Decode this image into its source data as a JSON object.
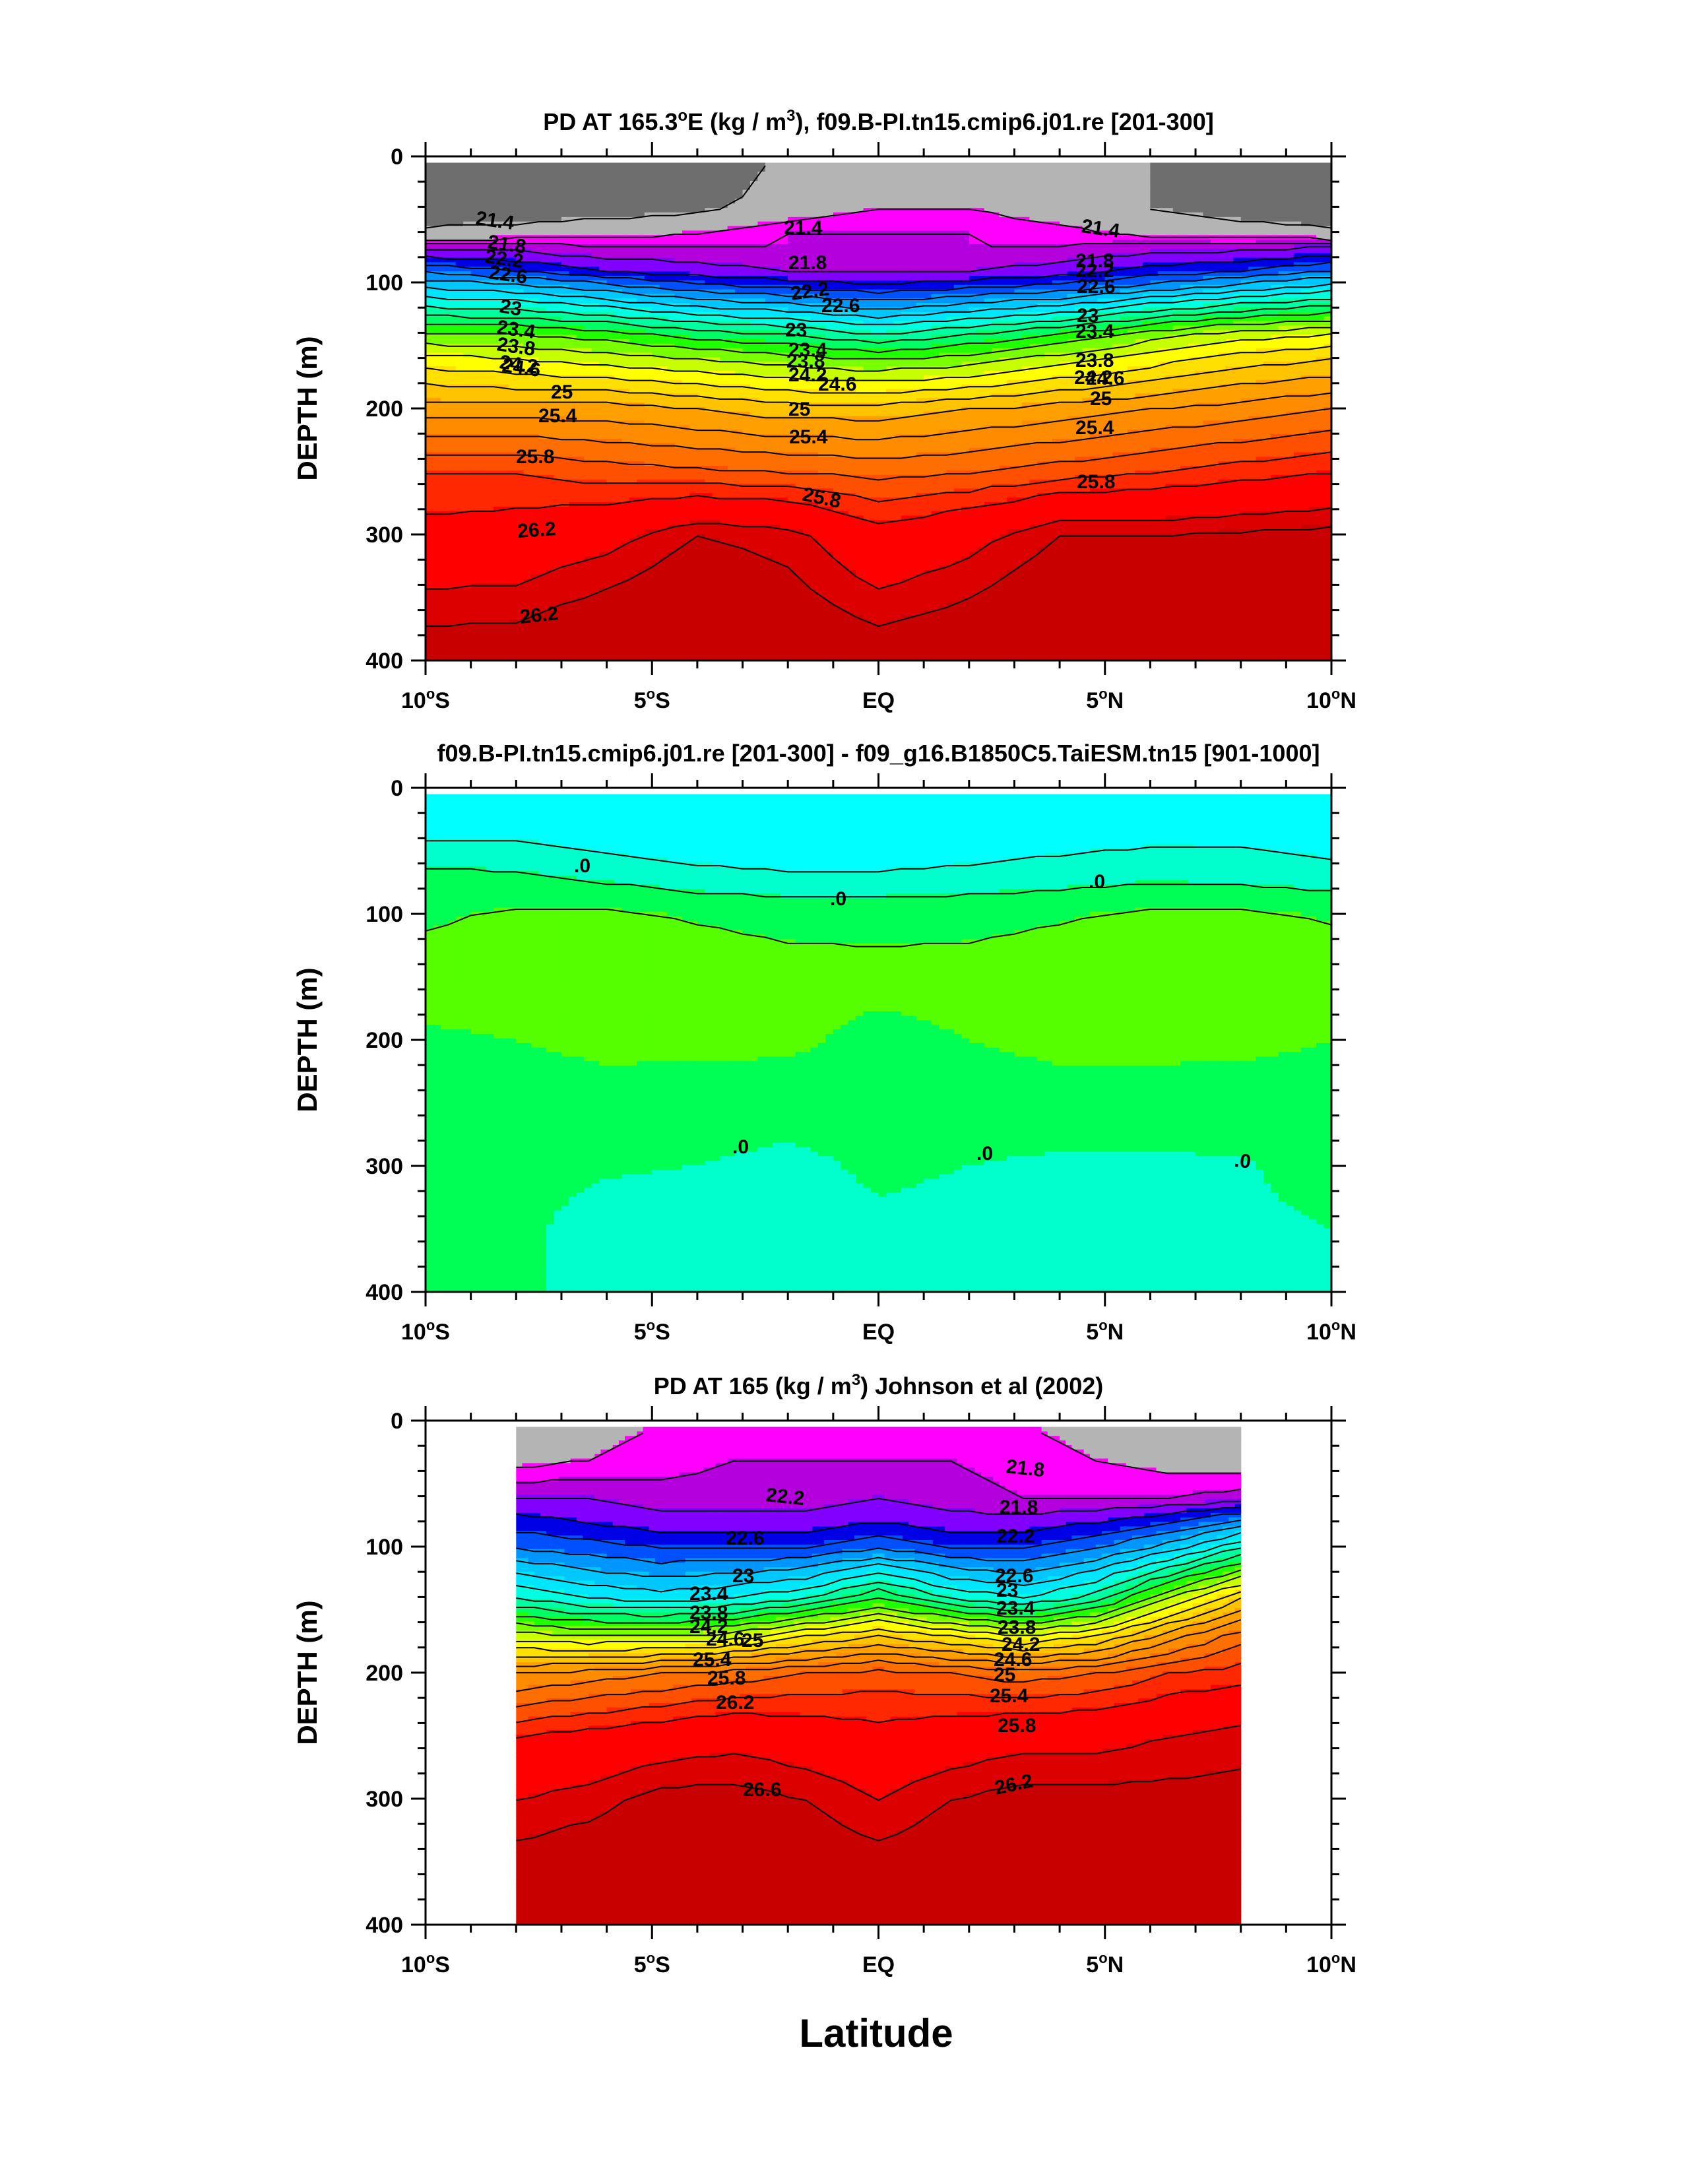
{
  "figure": {
    "xlabel": "Latitude"
  },
  "chart_data": [
    {
      "type": "contour",
      "title_parts": [
        "PD AT 165.3",
        "o",
        "E (kg / m",
        "3",
        "), f09.B-PI.tn15.cmip6.j01.re [201-300]"
      ],
      "ylabel": "DEPTH (m)",
      "xlabel": "",
      "xlim": [
        -10,
        10
      ],
      "ylim": [
        400,
        0
      ],
      "x_ticks": [
        {
          "value": -10,
          "num": "10",
          "deg": "o",
          "hemi": "S"
        },
        {
          "value": -5,
          "num": "5",
          "deg": "o",
          "hemi": "S"
        },
        {
          "value": 0,
          "num": "EQ",
          "deg": "",
          "hemi": ""
        },
        {
          "value": 5,
          "num": "5",
          "deg": "o",
          "hemi": "N"
        },
        {
          "value": 10,
          "num": "10",
          "deg": "o",
          "hemi": "N"
        }
      ],
      "y_ticks": [
        "0",
        "100",
        "200",
        "300",
        "400"
      ],
      "x_range": [
        -10,
        10
      ],
      "levels": [
        21.0,
        21.4,
        21.8,
        22.0,
        22.2,
        22.4,
        22.6,
        22.8,
        23.0,
        23.2,
        23.4,
        23.6,
        23.8,
        24.0,
        24.2,
        24.4,
        24.6,
        24.8,
        25.0,
        25.2,
        25.4,
        25.6,
        25.8,
        26.0,
        26.2,
        26.6,
        26.8
      ],
      "colors": [
        "#6e6e6e",
        "#b4b4b4",
        "#ff00ff",
        "#b400dc",
        "#8200ff",
        "#0000e6",
        "#0050ff",
        "#0096ff",
        "#00c8ff",
        "#00e6ff",
        "#00ffe0",
        "#00ffa0",
        "#00ff64",
        "#1eff00",
        "#78ff00",
        "#c8ff00",
        "#ffff00",
        "#ffe000",
        "#ffc300",
        "#ffa000",
        "#ff8c00",
        "#ff6e00",
        "#ff5000",
        "#ff2800",
        "#ff0000",
        "#dc0000",
        "#c80000"
      ],
      "field_depths": [
        0,
        40,
        60,
        70,
        90,
        100,
        140,
        160,
        200,
        250,
        300,
        400
      ],
      "field": [
        [
          21.0,
          21.0,
          21.0,
          21.0,
          21.5,
          21.7,
          21.7,
          21.5,
          21.4,
          21.0,
          20.8
        ],
        [
          21.1,
          21.1,
          21.2,
          21.3,
          21.6,
          21.8,
          21.8,
          21.6,
          21.4,
          21.2,
          21.1
        ],
        [
          21.5,
          21.6,
          21.7,
          21.8,
          22.0,
          22.0,
          22.0,
          21.9,
          21.7,
          21.6,
          21.5
        ],
        [
          22.1,
          22.1,
          22.0,
          22.0,
          22.0,
          22.0,
          22.0,
          22.0,
          22.1,
          22.1,
          22.2
        ],
        [
          22.8,
          22.6,
          22.4,
          22.3,
          22.2,
          22.2,
          22.2,
          22.3,
          22.5,
          22.6,
          22.8
        ],
        [
          23.1,
          23.0,
          22.8,
          22.6,
          22.5,
          22.4,
          22.5,
          22.6,
          22.8,
          23.0,
          23.2
        ],
        [
          24.2,
          24.2,
          24.1,
          23.9,
          23.8,
          23.6,
          23.8,
          24.0,
          24.3,
          24.5,
          24.6
        ],
        [
          24.7,
          24.6,
          24.5,
          24.4,
          24.3,
          24.2,
          24.3,
          24.5,
          24.7,
          24.9,
          25.0
        ],
        [
          25.3,
          25.3,
          25.3,
          25.2,
          25.1,
          25.1,
          25.2,
          25.3,
          25.4,
          25.5,
          25.6
        ],
        [
          26.0,
          26.0,
          25.9,
          25.85,
          25.8,
          25.75,
          25.8,
          25.9,
          26.0,
          26.1,
          26.2
        ],
        [
          26.3,
          26.35,
          26.5,
          26.8,
          26.7,
          26.3,
          26.5,
          26.8,
          26.8,
          26.85,
          26.9
        ],
        [
          27.0,
          27.0,
          27.2,
          27.35,
          27.1,
          27.0,
          27.1,
          27.3,
          27.4,
          27.45,
          27.5
        ]
      ],
      "labeled_levels": [
        "21.4",
        "21.8",
        "22.2",
        "22.6",
        "23",
        "23.4",
        "23.8",
        "24.2",
        "24.6",
        "25",
        "25.4",
        "25.8",
        "26.2"
      ]
    },
    {
      "type": "contour",
      "title_parts": [
        "f09.B-PI.tn15.cmip6.j01.re [201-300] - f09_g16.B1850C5.TaiESM.tn15 [901-1000]"
      ],
      "ylabel": "DEPTH (m)",
      "xlabel": "",
      "xlim": [
        -10,
        10
      ],
      "ylim": [
        400,
        0
      ],
      "x_ticks": [
        {
          "value": -10,
          "num": "10",
          "deg": "o",
          "hemi": "S"
        },
        {
          "value": -5,
          "num": "5",
          "deg": "o",
          "hemi": "S"
        },
        {
          "value": 0,
          "num": "EQ",
          "deg": "",
          "hemi": ""
        },
        {
          "value": 5,
          "num": "5",
          "deg": "o",
          "hemi": "N"
        },
        {
          "value": 10,
          "num": "10",
          "deg": "o",
          "hemi": "N"
        }
      ],
      "y_ticks": [
        "0",
        "100",
        "200",
        "300",
        "400"
      ],
      "x_range": [
        -10,
        10
      ],
      "levels": [
        -0.02,
        -0.01,
        0.0,
        0.01
      ],
      "colors": [
        "#00ffff",
        "#00ffcc",
        "#00ff55",
        "#55ff00"
      ],
      "field_depths": [
        0,
        40,
        70,
        100,
        150,
        200,
        250,
        300,
        350,
        400
      ],
      "field": [
        [
          -0.015,
          -0.012,
          -0.025,
          -0.03,
          -0.03,
          -0.03,
          -0.03,
          -0.025,
          -0.015,
          -0.012,
          -0.025
        ],
        [
          -0.01,
          -0.01,
          -0.015,
          -0.018,
          -0.02,
          -0.02,
          -0.018,
          -0.014,
          -0.012,
          -0.012,
          -0.015
        ],
        [
          0.003,
          0.002,
          -0.002,
          -0.006,
          -0.008,
          -0.008,
          -0.006,
          -0.004,
          -0.002,
          -0.003,
          -0.005
        ],
        [
          0.008,
          0.012,
          0.012,
          0.009,
          0.007,
          0.007,
          0.007,
          0.009,
          0.012,
          0.012,
          0.009
        ],
        [
          0.016,
          0.018,
          0.018,
          0.016,
          0.014,
          0.013,
          0.014,
          0.016,
          0.018,
          0.018,
          0.016
        ],
        [
          0.008,
          0.01,
          0.012,
          0.012,
          0.012,
          0.007,
          0.01,
          0.012,
          0.012,
          0.012,
          0.01
        ],
        [
          0.006,
          0.006,
          0.007,
          0.006,
          0.005,
          0.005,
          0.006,
          0.007,
          0.007,
          0.006,
          0.006
        ],
        [
          0.004,
          0.003,
          0.001,
          0.0,
          -0.003,
          0.002,
          0.0,
          -0.002,
          -0.002,
          -0.001,
          0.004
        ],
        [
          0.002,
          0.002,
          -0.004,
          -0.005,
          -0.006,
          -0.002,
          -0.004,
          -0.005,
          -0.004,
          -0.002,
          0.0
        ],
        [
          0.002,
          0.002,
          -0.004,
          -0.006,
          -0.007,
          -0.003,
          -0.005,
          -0.006,
          -0.005,
          -0.004,
          -0.002
        ]
      ],
      "labeled_levels": [
        ".0"
      ]
    },
    {
      "type": "contour",
      "title_parts": [
        "PD AT 165 (kg / m",
        "3",
        ") Johnson et al (2002)"
      ],
      "ylabel": "DEPTH (m)",
      "xlabel": "Latitude",
      "xlim": [
        -10,
        10
      ],
      "ylim": [
        400,
        0
      ],
      "x_ticks": [
        {
          "value": -10,
          "num": "10",
          "deg": "o",
          "hemi": "S"
        },
        {
          "value": -5,
          "num": "5",
          "deg": "o",
          "hemi": "S"
        },
        {
          "value": 0,
          "num": "EQ",
          "deg": "",
          "hemi": ""
        },
        {
          "value": 5,
          "num": "5",
          "deg": "o",
          "hemi": "N"
        },
        {
          "value": 10,
          "num": "10",
          "deg": "o",
          "hemi": "N"
        }
      ],
      "y_ticks": [
        "0",
        "100",
        "200",
        "300",
        "400"
      ],
      "x_range": [
        -8,
        8
      ],
      "levels": [
        21.0,
        21.4,
        21.8,
        22.0,
        22.2,
        22.4,
        22.6,
        22.8,
        23.0,
        23.2,
        23.4,
        23.6,
        23.8,
        24.0,
        24.2,
        24.4,
        24.6,
        24.8,
        25.0,
        25.2,
        25.4,
        25.6,
        25.8,
        26.0,
        26.2,
        26.6,
        26.8
      ],
      "colors": [
        "#6e6e6e",
        "#b4b4b4",
        "#ff00ff",
        "#b400dc",
        "#8200ff",
        "#0000e6",
        "#0050ff",
        "#0096ff",
        "#00c8ff",
        "#00e6ff",
        "#00ffe0",
        "#00ffa0",
        "#00ff64",
        "#1eff00",
        "#78ff00",
        "#c8ff00",
        "#ffff00",
        "#ffe000",
        "#ffc300",
        "#ffa000",
        "#ff8c00",
        "#ff6e00",
        "#ff5000",
        "#ff2800",
        "#ff0000",
        "#dc0000",
        "#c80000"
      ],
      "field_depths": [
        0,
        30,
        60,
        80,
        100,
        140,
        170,
        200,
        250,
        300,
        350,
        400
      ],
      "field": [
        [
          21.5,
          21.7,
          21.8,
          21.9,
          21.9,
          21.9,
          21.9,
          21.8,
          21.7,
          21.6,
          21.4
        ],
        [
          21.7,
          21.8,
          21.9,
          22.0,
          22.0,
          22.0,
          22.0,
          21.9,
          21.8,
          21.7,
          21.6
        ],
        [
          22.2,
          22.2,
          22.1,
          22.1,
          22.1,
          22.2,
          22.1,
          22.0,
          22.0,
          22.0,
          22.1
        ],
        [
          22.5,
          22.4,
          22.3,
          22.3,
          22.3,
          22.4,
          22.3,
          22.3,
          22.4,
          22.6,
          22.9
        ],
        [
          22.8,
          22.7,
          22.6,
          22.6,
          22.6,
          22.8,
          22.6,
          22.6,
          22.8,
          23.1,
          23.6
        ],
        [
          23.6,
          23.4,
          23.3,
          23.4,
          23.6,
          24.0,
          23.6,
          23.4,
          23.7,
          24.4,
          25.0
        ],
        [
          24.5,
          24.4,
          24.4,
          24.5,
          24.8,
          25.0,
          24.8,
          24.6,
          24.8,
          25.3,
          25.7
        ],
        [
          25.4,
          25.5,
          25.6,
          25.7,
          25.8,
          25.9,
          25.8,
          25.7,
          25.8,
          26.0,
          26.1
        ],
        [
          26.2,
          26.3,
          26.4,
          26.5,
          26.4,
          26.3,
          26.4,
          26.5,
          26.5,
          26.6,
          26.7
        ],
        [
          26.6,
          26.7,
          26.9,
          26.9,
          26.8,
          26.6,
          26.8,
          26.9,
          26.9,
          26.9,
          26.9
        ],
        [
          26.9,
          27.0,
          27.0,
          27.0,
          27.0,
          26.9,
          27.0,
          27.0,
          27.1,
          27.1,
          27.1
        ],
        [
          27.1,
          27.2,
          27.1,
          27.2,
          27.2,
          27.1,
          27.2,
          27.2,
          27.2,
          27.2,
          27.2
        ]
      ],
      "labeled_levels": [
        "21.8",
        "22.2",
        "22.6",
        "23",
        "23.4",
        "23.8",
        "24.2",
        "24.6",
        "25",
        "25.4",
        "25.8",
        "26.2",
        "26.6"
      ]
    }
  ]
}
